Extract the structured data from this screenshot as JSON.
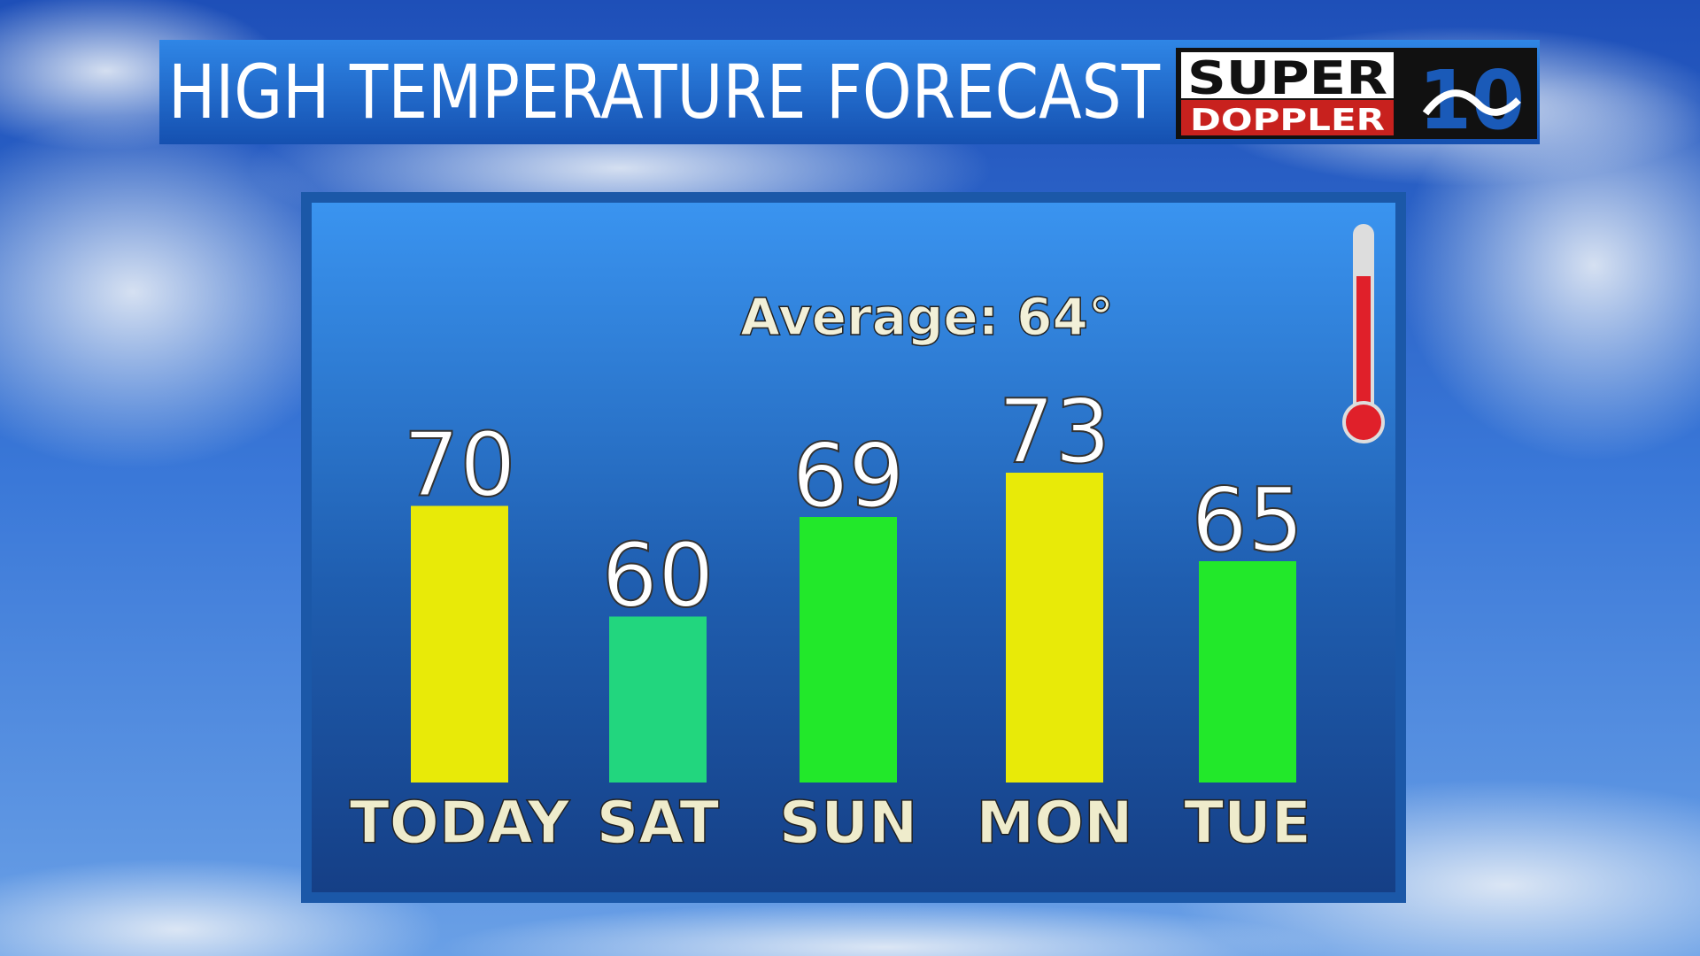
{
  "chart_data": {
    "type": "bar",
    "title": "HIGH TEMPERATURE FORECAST",
    "annotation": "Average: 64°",
    "logo": {
      "line1": "SUPER",
      "line2": "DOPPLER",
      "mark": "10"
    },
    "categories": [
      "TODAY",
      "SAT",
      "SUN",
      "MON",
      "TUE"
    ],
    "values": [
      70,
      60,
      69,
      73,
      65
    ],
    "colors": [
      "#e8ea08",
      "#22d67e",
      "#22e82a",
      "#e8ea08",
      "#22e82a"
    ],
    "ylim": [
      45,
      75
    ]
  }
}
